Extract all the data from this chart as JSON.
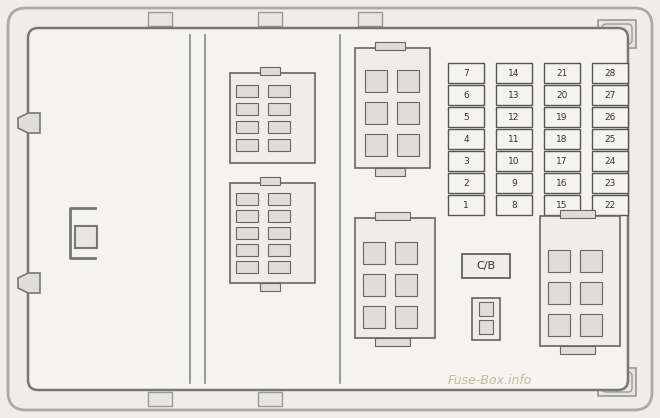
{
  "bg_color": "#f0ede8",
  "outline_color": "#555555",
  "fuse_color": "#555555",
  "text_color": "#333333",
  "watermark_color": "#c0b090",
  "figsize": [
    6.6,
    4.18
  ],
  "dpi": 100,
  "fuse_grid": {
    "col1": [
      7,
      6,
      5,
      4,
      3,
      2,
      1
    ],
    "col2": [
      14,
      13,
      12,
      11,
      10,
      9,
      8
    ],
    "col3": [
      21,
      20,
      19,
      18,
      17,
      16,
      15
    ],
    "col4": [
      28,
      27,
      26,
      25,
      24,
      23,
      22
    ]
  },
  "watermark": "Fuse-Box.info"
}
